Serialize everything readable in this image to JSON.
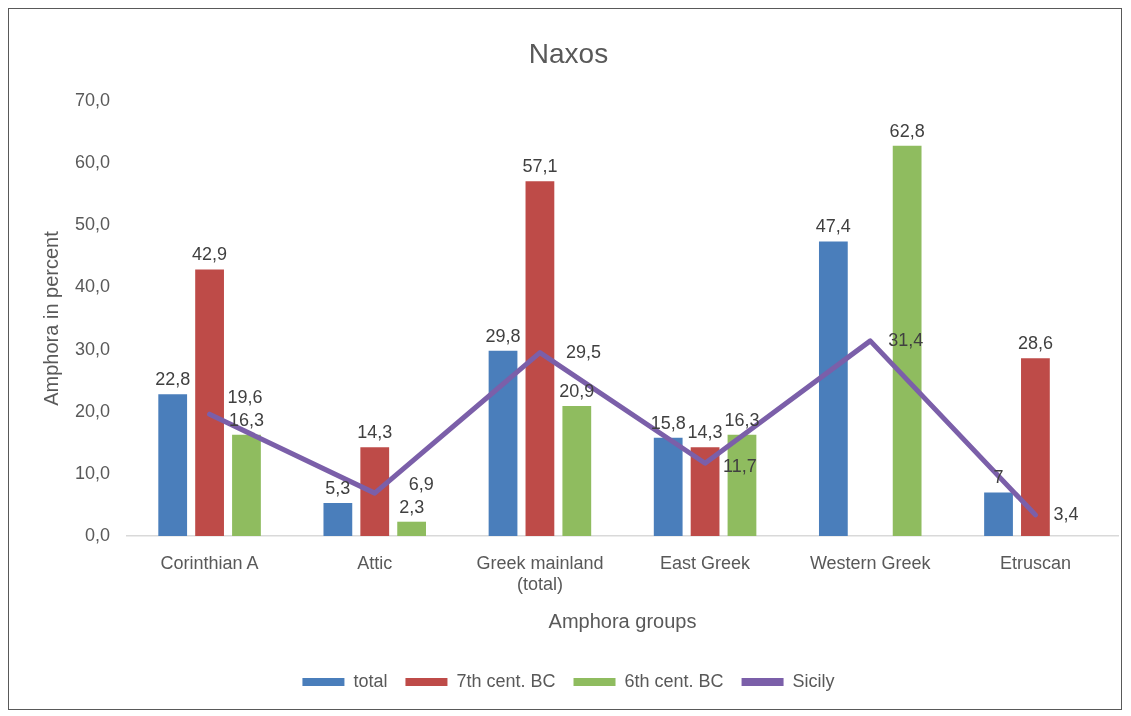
{
  "chart_data": {
    "type": "bar",
    "title": "Naxos",
    "xlabel": "Amphora groups",
    "ylabel": "Amphora in percent",
    "categories": [
      "Corinthian A",
      "Attic",
      "Greek mainland (total)",
      "East Greek",
      "Western Greek",
      "Etruscan"
    ],
    "series": [
      {
        "name": "total",
        "color": "#4a7ebb",
        "values": [
          22.8,
          5.3,
          29.8,
          15.8,
          47.4,
          7
        ],
        "value_labels": [
          "22,8",
          "5,3",
          "29,8",
          "15,8",
          "47,4",
          "7"
        ]
      },
      {
        "name": "7th cent. BC",
        "color": "#be4b48",
        "values": [
          42.9,
          14.3,
          57.1,
          14.3,
          null,
          28.6
        ],
        "value_labels": [
          "42,9",
          "14,3",
          "57,1",
          "14,3",
          null,
          "28,6"
        ]
      },
      {
        "name": "6th cent. BC",
        "color": "#8fbc5f",
        "values": [
          16.3,
          2.3,
          20.9,
          16.3,
          62.8,
          null
        ],
        "value_labels": [
          "16,3",
          "2,3",
          "20,9",
          "16,3",
          "62,8",
          null
        ]
      },
      {
        "name": "Sicily",
        "type": "line",
        "color": "#7b5fa9",
        "values": [
          19.6,
          6.9,
          29.5,
          11.7,
          31.4,
          3.4
        ],
        "value_labels": [
          "19,6",
          "6,9",
          "29,5",
          "11,7",
          "31,4",
          "3,4"
        ]
      }
    ],
    "ylim": [
      0,
      70
    ],
    "yticks": [
      {
        "value": 0,
        "label": "0,0"
      },
      {
        "value": 10,
        "label": "10,0"
      },
      {
        "value": 20,
        "label": "20,0"
      },
      {
        "value": 30,
        "label": "30,0"
      },
      {
        "value": 40,
        "label": "40,0"
      },
      {
        "value": 50,
        "label": "50,0"
      },
      {
        "value": 60,
        "label": "60,0"
      },
      {
        "value": 70,
        "label": "70,0"
      }
    ],
    "grid": false,
    "legend": "bottom"
  }
}
